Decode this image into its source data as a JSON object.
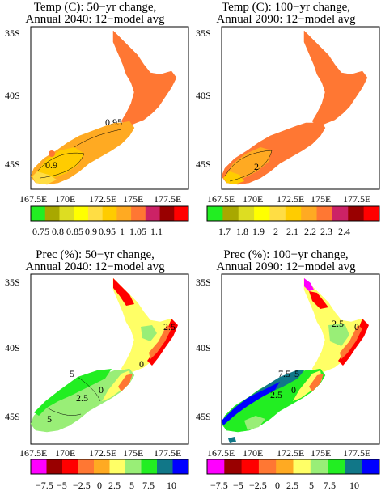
{
  "colors": {
    "temp_2040": [
      "#22ee22",
      "#a8a800",
      "#dddd22",
      "#ffff00",
      "#ffdd44",
      "#ffcc00",
      "#ffaa22",
      "#ff7733",
      "#cc2266",
      "#990000",
      "#ff0000"
    ],
    "temp_2090": [
      "#22ee22",
      "#a8a800",
      "#dddd22",
      "#ffff00",
      "#ffdd44",
      "#ffcc00",
      "#ffaa22",
      "#ff7733",
      "#cc2266",
      "#990000",
      "#ff0000"
    ],
    "prec": [
      "#ff00ff",
      "#990000",
      "#ff0000",
      "#ff7733",
      "#ffaa22",
      "#ffff66",
      "#99ee77",
      "#22ee22",
      "#117788",
      "#0000ff"
    ]
  },
  "panels": [
    {
      "id": "temp-2040",
      "title_line1": "Temp (C): 50−yr change,",
      "title_line2": "Annual 2040: 12−model avg",
      "lat_labels": [
        "35S",
        "40S",
        "45S"
      ],
      "lon_labels": [
        "167.5E",
        "170E",
        "172.5E",
        "175E",
        "177.5E"
      ],
      "colorbar_labels": [
        "0.75",
        "0.8",
        "0.85",
        "0.9",
        "0.95",
        "1",
        "1.05",
        "1.1"
      ],
      "contour_labels": [
        "0.95",
        "0.9"
      ]
    },
    {
      "id": "temp-2090",
      "title_line1": "Temp (C): 100−yr change,",
      "title_line2": "Annual 2090: 12−model avg",
      "lat_labels": [
        "35S",
        "40S",
        "45S"
      ],
      "lon_labels": [
        "167.5E",
        "170E",
        "172.5E",
        "175E",
        "177.5E"
      ],
      "colorbar_labels": [
        "1.7",
        "1.8",
        "1.9",
        "2",
        "2.1",
        "2.2",
        "2.3",
        "2.4"
      ],
      "contour_labels": [
        "2"
      ]
    },
    {
      "id": "prec-2040",
      "title_line1": "Prec (%): 50−yr change,",
      "title_line2": "Annual 2040: 12−model avg",
      "lat_labels": [
        "35S",
        "40S",
        "45S"
      ],
      "lon_labels": [
        "167.5E",
        "170E",
        "172.5E",
        "175E",
        "177.5E"
      ],
      "colorbar_labels": [
        "−7.5",
        "−5",
        "−2.5",
        "0",
        "2.5",
        "5",
        "7.5",
        "10"
      ],
      "contour_labels": [
        "5",
        "2.5",
        "0",
        "5",
        "0",
        "2.5"
      ]
    },
    {
      "id": "prec-2090",
      "title_line1": "Prec (%): 100−yr change,",
      "title_line2": "Annual 2090: 12−model avg",
      "lat_labels": [
        "35S",
        "40S",
        "45S"
      ],
      "lon_labels": [
        "167.5E",
        "170E",
        "172.5E",
        "175E",
        "177.5E"
      ],
      "colorbar_labels": [
        "−7.5",
        "−5",
        "−2.5",
        "0",
        "2.5",
        "5",
        "7.5",
        "10"
      ],
      "contour_labels": [
        "7.5",
        "5",
        "2.5",
        "0",
        "2.5",
        "0"
      ]
    }
  ]
}
